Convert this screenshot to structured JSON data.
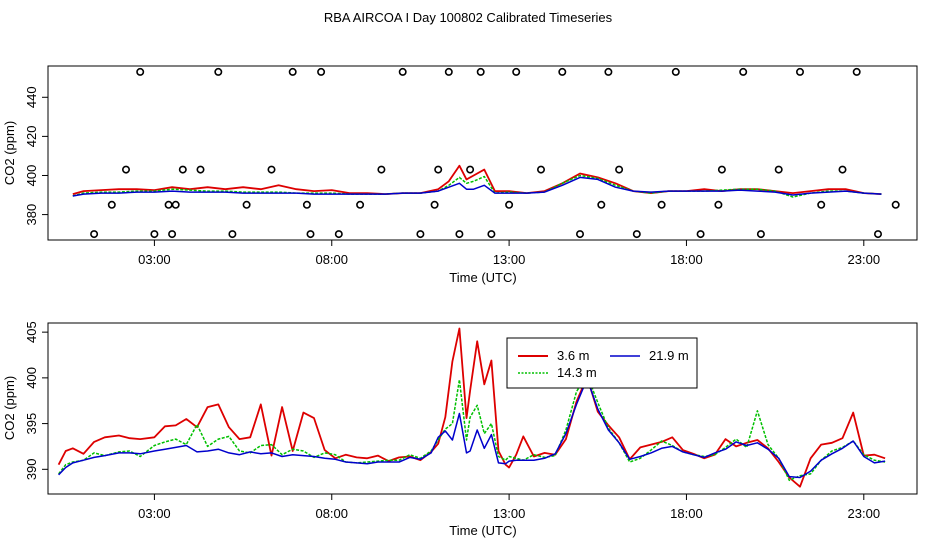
{
  "page_title": "RBA AIRCOA I  Day 100802  Calibrated Timeseries",
  "colors": {
    "s1": "#dd0000",
    "s2": "#00c000",
    "s3": "#0000cc",
    "axis": "#000000"
  },
  "chart_data": [
    {
      "type": "line",
      "id": "top",
      "xlabel": "Time (UTC)",
      "ylabel": "CO2 (ppm)",
      "xlim": [
        0,
        24.5
      ],
      "ylim": [
        367,
        456
      ],
      "x_ticks": [
        3,
        8,
        13,
        18,
        23
      ],
      "x_tick_labels": [
        "03:00",
        "08:00",
        "13:00",
        "18:00",
        "23:00"
      ],
      "y_ticks": [
        380,
        400,
        420,
        440
      ],
      "y_tick_labels": [
        "380",
        "400",
        "420",
        "440"
      ],
      "series": [
        {
          "name": "3.6 m",
          "color": "#dd0000",
          "x": [
            0.7,
            1.0,
            1.5,
            2.0,
            2.5,
            3.0,
            3.5,
            4.0,
            4.5,
            5.0,
            5.5,
            6.0,
            6.5,
            7.0,
            7.5,
            8.0,
            8.5,
            9.0,
            9.5,
            10.0,
            10.5,
            11.0,
            11.3,
            11.6,
            11.8,
            12.0,
            12.3,
            12.6,
            13.0,
            13.5,
            14.0,
            14.5,
            15.0,
            15.5,
            16.0,
            16.5,
            17.0,
            17.5,
            18.0,
            18.5,
            19.0,
            19.5,
            20.0,
            20.5,
            21.0,
            21.5,
            22.0,
            22.5,
            23.0,
            23.5
          ],
          "values": [
            390.5,
            392,
            392.5,
            393,
            393,
            392.5,
            394,
            393,
            394,
            393,
            394,
            393,
            395,
            393,
            392,
            392.5,
            391,
            391,
            390.5,
            391,
            391,
            393,
            397,
            405,
            398,
            400,
            403,
            392,
            392,
            391,
            392,
            396,
            401,
            399,
            396,
            392,
            391,
            392,
            392,
            393,
            392,
            393,
            393,
            392,
            391,
            392,
            393,
            393,
            391,
            390.5
          ]
        },
        {
          "name": "14.3 m",
          "color": "#00c000",
          "x": [
            0.7,
            1.0,
            1.5,
            2.0,
            2.5,
            3.0,
            3.5,
            4.0,
            4.5,
            5.0,
            5.5,
            6.0,
            6.5,
            7.0,
            7.5,
            8.0,
            8.5,
            9.0,
            9.5,
            10.0,
            10.5,
            11.0,
            11.3,
            11.6,
            11.8,
            12.0,
            12.3,
            12.6,
            13.0,
            13.5,
            14.0,
            14.5,
            15.0,
            15.5,
            16.0,
            16.5,
            17.0,
            17.5,
            18.0,
            18.5,
            19.0,
            19.5,
            20.0,
            20.5,
            21.0,
            21.5,
            22.0,
            22.5,
            23.0,
            23.5
          ],
          "values": [
            389.5,
            391,
            391.5,
            391.5,
            392,
            392,
            393,
            392.5,
            392,
            392,
            391.5,
            391.5,
            391.5,
            391,
            391,
            391,
            390.5,
            390.5,
            390.5,
            391,
            391,
            392,
            395,
            399,
            396,
            397,
            399.5,
            391,
            391.5,
            391,
            391.5,
            396,
            400,
            398.5,
            395,
            392,
            391,
            392,
            392,
            392,
            392.5,
            393,
            393,
            392,
            389,
            391,
            392,
            392,
            391,
            390.5
          ]
        },
        {
          "name": "21.9 m",
          "color": "#0000cc",
          "x": [
            0.7,
            1.0,
            1.5,
            2.0,
            2.5,
            3.0,
            3.5,
            4.0,
            4.5,
            5.0,
            5.5,
            6.0,
            6.5,
            7.0,
            7.5,
            8.0,
            8.5,
            9.0,
            9.5,
            10.0,
            10.5,
            11.0,
            11.3,
            11.6,
            11.8,
            12.0,
            12.3,
            12.6,
            13.0,
            13.5,
            14.0,
            14.5,
            15.0,
            15.5,
            16.0,
            16.5,
            17.0,
            17.5,
            18.0,
            18.5,
            19.0,
            19.5,
            20.0,
            20.5,
            21.0,
            21.5,
            22.0,
            22.5,
            23.0,
            23.5
          ],
          "values": [
            389.5,
            390.5,
            391,
            391,
            391.5,
            391.5,
            392,
            391.5,
            391.5,
            391.5,
            391,
            391,
            391,
            391,
            390.5,
            390.5,
            390.5,
            390.5,
            390.5,
            391,
            391,
            392,
            394,
            396,
            393,
            393,
            395,
            391,
            391,
            391,
            391.5,
            395,
            399,
            398,
            394,
            392,
            391.5,
            392,
            392,
            392,
            392,
            392.5,
            392,
            391.5,
            390,
            391,
            391.5,
            392,
            391,
            390.5
          ]
        }
      ],
      "points": {
        "symbol": "circle",
        "x": [
          1.3,
          1.8,
          2.2,
          2.6,
          3.0,
          3.4,
          3.5,
          3.6,
          3.8,
          4.3,
          4.8,
          5.2,
          5.6,
          6.3,
          6.9,
          7.3,
          7.4,
          7.7,
          8.2,
          8.8,
          9.4,
          10.0,
          10.5,
          10.9,
          11.0,
          11.3,
          11.6,
          11.9,
          12.2,
          12.5,
          13.0,
          13.2,
          13.9,
          14.5,
          15.0,
          15.6,
          15.8,
          16.1,
          16.6,
          17.3,
          17.7,
          18.4,
          18.9,
          19.0,
          19.6,
          20.1,
          20.6,
          21.2,
          21.8,
          22.4,
          22.8,
          23.4,
          23.9
        ],
        "values": [
          370,
          385,
          403,
          453,
          370,
          385,
          370,
          385,
          403,
          403,
          453,
          370,
          385,
          403,
          453,
          385,
          370,
          453,
          370,
          385,
          403,
          453,
          370,
          385,
          403,
          453,
          370,
          403,
          453,
          370,
          385,
          453,
          403,
          453,
          370,
          385,
          453,
          403,
          370,
          385,
          453,
          370,
          385,
          403,
          453,
          370,
          403,
          453,
          385,
          403,
          453,
          370,
          385
        ]
      }
    },
    {
      "type": "line",
      "id": "bottom",
      "xlabel": "Time (UTC)",
      "ylabel": "CO2 (ppm)",
      "xlim": [
        0,
        24.5
      ],
      "ylim": [
        387.3,
        406
      ],
      "x_ticks": [
        3,
        8,
        13,
        18,
        23
      ],
      "x_tick_labels": [
        "03:00",
        "08:00",
        "13:00",
        "18:00",
        "23:00"
      ],
      "y_ticks": [
        390,
        395,
        400,
        405
      ],
      "y_tick_labels": [
        "390",
        "395",
        "400",
        "405"
      ],
      "legend": {
        "position": "top-center",
        "entries": [
          "3.6 m",
          "14.3 m",
          "21.9 m"
        ]
      },
      "series": [
        {
          "name": "3.6 m",
          "color": "#dd0000",
          "x": [
            0.3,
            0.5,
            0.7,
            1.0,
            1.3,
            1.6,
            2.0,
            2.3,
            2.6,
            3.0,
            3.3,
            3.6,
            3.9,
            4.2,
            4.5,
            4.8,
            5.1,
            5.4,
            5.7,
            6.0,
            6.3,
            6.6,
            6.9,
            7.2,
            7.5,
            7.8,
            8.1,
            8.4,
            8.7,
            9.0,
            9.3,
            9.6,
            9.9,
            10.2,
            10.5,
            10.8,
            11.0,
            11.2,
            11.4,
            11.6,
            11.8,
            11.9,
            12.1,
            12.3,
            12.5,
            12.7,
            12.9,
            13.0,
            13.2,
            13.4,
            13.7,
            14.0,
            14.3,
            14.6,
            14.9,
            15.2,
            15.5,
            15.8,
            16.1,
            16.4,
            16.7,
            17.0,
            17.3,
            17.6,
            17.9,
            18.2,
            18.5,
            18.8,
            19.1,
            19.4,
            19.7,
            20.0,
            20.3,
            20.6,
            20.9,
            21.2,
            21.5,
            21.8,
            22.1,
            22.4,
            22.7,
            23.0,
            23.3,
            23.6
          ],
          "values": [
            390.5,
            392,
            392.3,
            391.7,
            393,
            393.5,
            393.7,
            393.4,
            393.3,
            393.5,
            394.7,
            394.8,
            395.5,
            394.6,
            396.8,
            397.1,
            394.6,
            393.3,
            393.5,
            397.1,
            391.5,
            396.8,
            392,
            396.2,
            395.6,
            392.1,
            391.2,
            391.6,
            391.3,
            391.2,
            391.5,
            390.9,
            391.3,
            391.4,
            391,
            391.9,
            392.8,
            395.7,
            401.8,
            405.4,
            395.6,
            398.6,
            404,
            399.3,
            401.9,
            392,
            390.5,
            390.2,
            391.6,
            393.6,
            391.4,
            391.8,
            391.6,
            393.3,
            397.4,
            400.1,
            396.3,
            394.8,
            393.5,
            391.1,
            392.4,
            392.7,
            393,
            393.5,
            392.1,
            391.7,
            391.2,
            391.6,
            393.3,
            392.5,
            392.9,
            393.2,
            392.3,
            390.8,
            389.1,
            388.1,
            391.2,
            392.7,
            392.9,
            393.4,
            396.2,
            391.5,
            391.6,
            391.2
          ]
        },
        {
          "name": "14.3 m",
          "color": "#00c000",
          "x": [
            0.3,
            0.5,
            0.7,
            1.0,
            1.3,
            1.6,
            2.0,
            2.3,
            2.6,
            3.0,
            3.3,
            3.6,
            3.9,
            4.2,
            4.5,
            4.8,
            5.1,
            5.4,
            5.7,
            6.0,
            6.3,
            6.6,
            6.9,
            7.2,
            7.5,
            7.8,
            8.1,
            8.4,
            8.7,
            9.0,
            9.3,
            9.6,
            9.9,
            10.2,
            10.5,
            10.8,
            11.0,
            11.2,
            11.4,
            11.6,
            11.8,
            11.9,
            12.1,
            12.3,
            12.5,
            12.7,
            12.9,
            13.0,
            13.2,
            13.4,
            13.7,
            14.0,
            14.3,
            14.6,
            14.9,
            15.2,
            15.5,
            15.8,
            16.1,
            16.4,
            16.7,
            17.0,
            17.3,
            17.6,
            17.9,
            18.2,
            18.5,
            18.8,
            19.1,
            19.4,
            19.7,
            20.0,
            20.3,
            20.6,
            20.9,
            21.2,
            21.5,
            21.8,
            22.1,
            22.4,
            22.7,
            23.0,
            23.3,
            23.6
          ],
          "values": [
            389.5,
            390.5,
            390.8,
            391,
            391.8,
            391.5,
            391.9,
            392,
            391.4,
            392.6,
            393,
            393.3,
            392.7,
            394.9,
            392.5,
            393.3,
            393.6,
            392,
            391.8,
            392.6,
            392.7,
            391.6,
            392.2,
            392,
            391.3,
            391.8,
            391.6,
            390.8,
            390.7,
            390.8,
            390.9,
            391,
            391,
            391.6,
            391.2,
            392,
            393.2,
            394.4,
            395,
            399.8,
            393.2,
            395.7,
            397,
            393.9,
            395,
            391.4,
            391,
            391.4,
            391.2,
            391,
            391.6,
            391.3,
            391.5,
            394.3,
            398.5,
            400.3,
            397.3,
            394.5,
            392.9,
            390.8,
            391.2,
            392.1,
            393.1,
            392.6,
            391.9,
            391.6,
            391.4,
            391.6,
            392.4,
            393.3,
            392.4,
            396.4,
            392.7,
            391.2,
            388.8,
            389.3,
            389.5,
            391,
            392,
            392.4,
            393.1,
            391.6,
            391,
            390.8
          ]
        },
        {
          "name": "21.9 m",
          "color": "#0000cc",
          "x": [
            0.3,
            0.5,
            0.7,
            1.0,
            1.3,
            1.6,
            2.0,
            2.3,
            2.6,
            3.0,
            3.3,
            3.6,
            3.9,
            4.2,
            4.5,
            4.8,
            5.1,
            5.4,
            5.7,
            6.0,
            6.3,
            6.6,
            6.9,
            7.2,
            7.5,
            7.8,
            8.1,
            8.4,
            8.7,
            9.0,
            9.3,
            9.6,
            9.9,
            10.2,
            10.5,
            10.8,
            11.0,
            11.2,
            11.4,
            11.6,
            11.8,
            11.9,
            12.1,
            12.3,
            12.5,
            12.7,
            12.9,
            13.0,
            13.2,
            13.4,
            13.7,
            14.0,
            14.3,
            14.6,
            14.9,
            15.2,
            15.5,
            15.8,
            16.1,
            16.4,
            16.7,
            17.0,
            17.3,
            17.6,
            17.9,
            18.2,
            18.5,
            18.8,
            19.1,
            19.4,
            19.7,
            20.0,
            20.3,
            20.6,
            20.9,
            21.2,
            21.5,
            21.8,
            22.1,
            22.4,
            22.7,
            23.0,
            23.3,
            23.6
          ],
          "values": [
            389.4,
            390.2,
            390.7,
            391,
            391.3,
            391.5,
            391.8,
            391.8,
            391.7,
            392,
            392.2,
            392.4,
            392.6,
            391.9,
            392,
            392.2,
            391.8,
            391.6,
            391.9,
            391.7,
            391.8,
            391.4,
            391.6,
            391.5,
            391.4,
            391.2,
            391.1,
            390.8,
            390.7,
            390.6,
            390.8,
            390.8,
            390.8,
            391.3,
            391.1,
            391.8,
            393.5,
            394.2,
            393.2,
            396.1,
            391.8,
            392,
            394.3,
            392.3,
            393.8,
            390.7,
            390.6,
            390.9,
            391,
            391,
            391,
            391.2,
            391.7,
            393.9,
            397.1,
            399.9,
            396.6,
            394.3,
            392.9,
            391.1,
            391.4,
            391.8,
            392.3,
            392.5,
            391.9,
            391.6,
            391.3,
            391.8,
            392.2,
            393,
            392.6,
            392.9,
            392.2,
            391.2,
            389.2,
            389.1,
            389.8,
            391,
            391.7,
            392.3,
            393.1,
            391.4,
            390.7,
            390.9
          ]
        }
      ]
    }
  ]
}
